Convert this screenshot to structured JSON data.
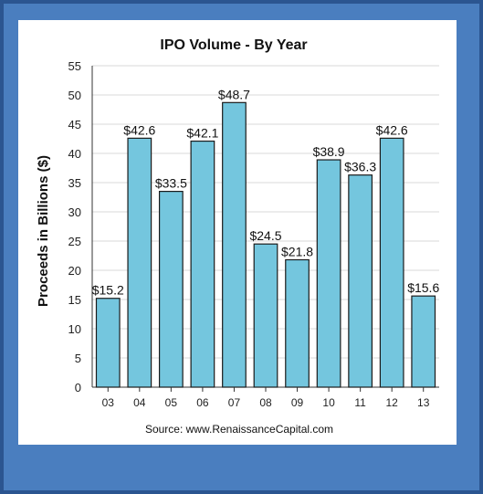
{
  "chart_data": {
    "type": "bar",
    "title": "IPO Volume - By Year",
    "ylabel": "Proceeds in Billions ($)",
    "xlabel": "",
    "source": "Source: www.RenaissanceCapital.com",
    "categories": [
      "03",
      "04",
      "05",
      "06",
      "07",
      "08",
      "09",
      "10",
      "11",
      "12",
      "13"
    ],
    "values": [
      15.2,
      42.6,
      33.5,
      42.1,
      48.7,
      24.5,
      21.8,
      38.9,
      36.3,
      42.6,
      15.6
    ],
    "data_labels": [
      "$15.2",
      "$42.6",
      "$33.5",
      "$42.1",
      "$48.7",
      "$24.5",
      "$21.8",
      "$38.9",
      "$36.3",
      "$42.6",
      "$15.6"
    ],
    "yticks": [
      "0",
      "5",
      "10",
      "15",
      "20",
      "25",
      "30",
      "35",
      "40",
      "45",
      "50",
      "55"
    ],
    "ylim": [
      0,
      55
    ],
    "grid": true,
    "bar_color": "#74c6de"
  }
}
